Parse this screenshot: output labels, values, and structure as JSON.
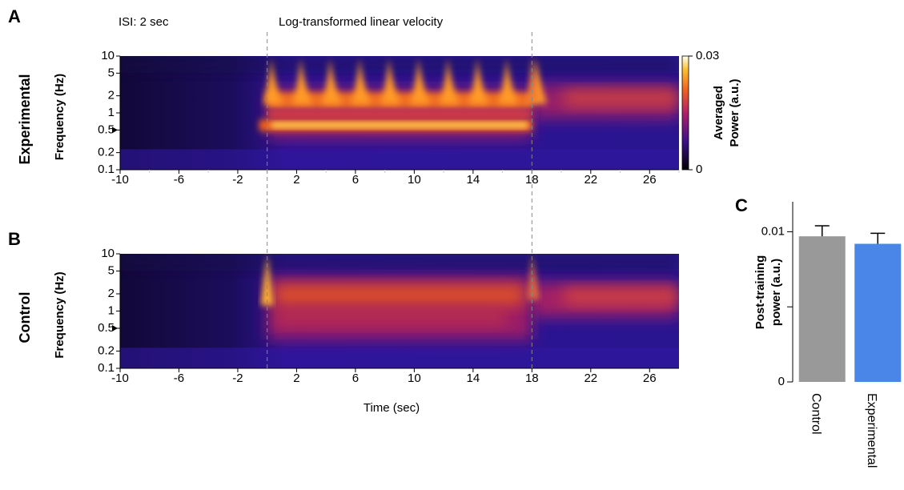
{
  "chart_data": [
    {
      "type": "heatmap",
      "panel_label": "A",
      "row_label": "Experimental",
      "ylabel": "Frequency (Hz)",
      "annotations": [
        "ISI: 2 sec",
        "Log-transformed linear velocity"
      ],
      "xlim": [
        -10,
        28
      ],
      "xticks": [
        -10,
        -6,
        -2,
        2,
        6,
        10,
        14,
        18,
        22,
        26
      ],
      "xminor": [
        -8,
        -4,
        0,
        4,
        8,
        12,
        16,
        20,
        24,
        28
      ],
      "ylim": [
        0.1,
        10
      ],
      "yscale": "log",
      "yticks": [
        0.1,
        0.2,
        0.5,
        1,
        2,
        5,
        10
      ],
      "vlines": [
        0,
        18
      ],
      "arrow_at": 0.5,
      "colorbar": {
        "label": [
          "Averaged",
          "Power (a.u.)"
        ],
        "lim": [
          0,
          0.03
        ],
        "ticks": [
          0,
          0.03
        ]
      }
    },
    {
      "type": "heatmap",
      "panel_label": "B",
      "row_label": "Control",
      "ylabel": "Frequency (Hz)",
      "xlabel": "Time (sec)",
      "xlim": [
        -10,
        28
      ],
      "xticks": [
        -10,
        -6,
        -2,
        2,
        6,
        10,
        14,
        18,
        22,
        26
      ],
      "ylim": [
        0.1,
        10
      ],
      "yscale": "log",
      "yticks": [
        0.1,
        0.2,
        0.5,
        1,
        2,
        5,
        10
      ],
      "vlines": [
        0,
        18
      ],
      "arrow_at": 0.5
    },
    {
      "type": "bar",
      "panel_label": "C",
      "ylabel": [
        "Post-training",
        "power (a.u.)"
      ],
      "categories": [
        "Control",
        "Experimental"
      ],
      "values": [
        0.0097,
        0.0092
      ],
      "errors": [
        0.0007,
        0.0007
      ],
      "colors": [
        "#999999",
        "#4a86e8"
      ],
      "ylim": [
        0,
        0.012
      ],
      "yticks": [
        0,
        0.01
      ],
      "yminor": [
        0.005
      ]
    }
  ]
}
